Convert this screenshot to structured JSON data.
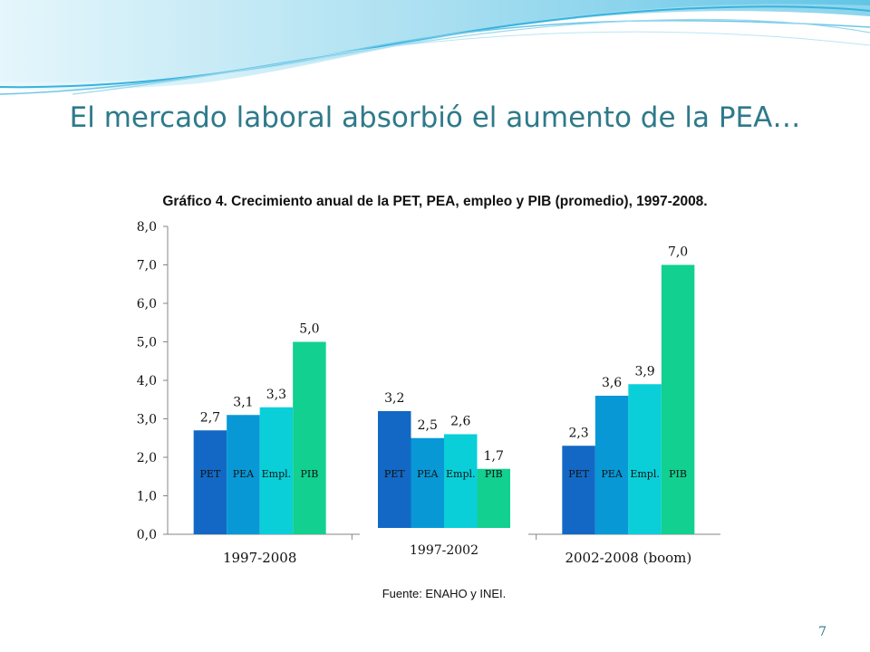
{
  "slide": {
    "title": "El mercado laboral absorbió el aumento de la PEA…",
    "subtitle": "Gráfico 4. Crecimiento anual de la PET, PEA, empleo y PIB (promedio), 1997-2008.",
    "source": "Fuente: ENAHO y INEI.",
    "page_number": "7"
  },
  "colors": {
    "title": "#2e7a8a",
    "PET": "#1268c4",
    "PEA": "#0898d6",
    "Empl.": "#0acfd8",
    "PIB": "#12d090"
  },
  "chart_data": {
    "type": "bar",
    "categories": [
      "1997-2008",
      "1997-2002",
      "2002-2008 (boom)"
    ],
    "series": [
      {
        "name": "PET",
        "values": [
          2.7,
          3.2,
          2.3
        ],
        "labels": [
          "2,7",
          "3,2",
          "2,3"
        ]
      },
      {
        "name": "PEA",
        "values": [
          3.1,
          2.5,
          3.6
        ],
        "labels": [
          "3,1",
          "2,5",
          "3,6"
        ]
      },
      {
        "name": "Empl.",
        "values": [
          3.3,
          2.6,
          3.9
        ],
        "labels": [
          "3,3",
          "2,6",
          "3,9"
        ]
      },
      {
        "name": "PIB",
        "values": [
          5.0,
          1.7,
          7.0
        ],
        "labels": [
          "5,0",
          "1,7",
          "7,0"
        ]
      }
    ],
    "ylim": [
      0,
      8
    ],
    "yticks": [
      "0,0",
      "1,0",
      "2,0",
      "3,0",
      "4,0",
      "5,0",
      "6,0",
      "7,0",
      "8,0"
    ],
    "grid": false,
    "legend": "series names printed inside each bar"
  }
}
